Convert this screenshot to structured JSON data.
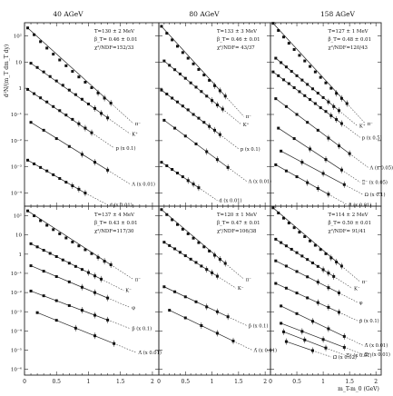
{
  "chart_data": {
    "type": "scatter",
    "energies": [
      "40 AGeV",
      "80 AGeV",
      "158 AGeV"
    ],
    "ylabel": "d²N/(m_T dm_T dy)",
    "xlabel": "m_T-m_0 (GeV)",
    "x_ticks": [
      "0",
      "0.5",
      "1",
      "1.5",
      "2"
    ],
    "x_range": [
      0,
      2.1
    ],
    "y_scale": "log",
    "y_range_exponents": [
      -6,
      3
    ],
    "y_tick_labels": {
      "top": [
        "10²",
        "10",
        "1",
        "10⁻¹",
        "10⁻²",
        "10⁻³",
        "10⁻⁴"
      ],
      "bottom": [
        "10²",
        "10",
        "1",
        "10⁻¹",
        "10⁻²",
        "10⁻³",
        "10⁻⁴",
        "10⁻⁵",
        "10⁻⁶"
      ]
    },
    "panels": [
      {
        "row": "top",
        "col": 0,
        "fit_T": "T=130 ± 2 MeV",
        "fit_beta": "β_T= 0.46 ± 0.01",
        "fit_chi": "χ²/NDF=152/33",
        "series": [
          {
            "name": "π⁻",
            "factor": 1,
            "x": [
              0.05,
              0.15,
              0.25,
              0.35,
              0.45,
              0.55,
              0.65,
              0.75,
              0.85,
              0.95,
              1.05,
              1.15,
              1.25,
              1.35
            ],
            "y": [
              200,
              110,
              60,
              34,
              20,
              12,
              7.2,
              4.4,
              2.7,
              1.7,
              1.05,
              0.66,
              0.42,
              0.27
            ]
          },
          {
            "name": "K⁺",
            "factor": 1,
            "x": [
              0.1,
              0.2,
              0.3,
              0.4,
              0.5,
              0.6,
              0.7,
              0.8,
              0.9,
              1.0,
              1.1,
              1.2,
              1.3
            ],
            "y": [
              9,
              6.2,
              4.2,
              2.8,
              1.9,
              1.3,
              0.85,
              0.57,
              0.38,
              0.25,
              0.17,
              0.11,
              0.074
            ]
          },
          {
            "name": "p (x 0.1)",
            "factor": 0.1,
            "x": [
              0.05,
              0.15,
              0.25,
              0.35,
              0.45,
              0.55,
              0.65,
              0.75,
              0.85,
              0.95,
              1.05
            ],
            "y": [
              0.9,
              0.62,
              0.43,
              0.3,
              0.2,
              0.14,
              0.095,
              0.065,
              0.044,
              0.03,
              0.02
            ]
          },
          {
            "name": "Λ (x 0.01)",
            "factor": 0.01,
            "x": [
              0.1,
              0.3,
              0.5,
              0.7,
              0.9,
              1.1,
              1.3
            ],
            "y": [
              0.05,
              0.025,
              0.012,
              0.006,
              0.003,
              0.0015,
              0.00075
            ]
          },
          {
            "name": "d (x 0.01)",
            "factor": 0.01,
            "x": [
              0.05,
              0.15,
              0.25,
              0.35,
              0.45,
              0.55,
              0.65,
              0.75,
              0.85,
              0.95
            ],
            "y": [
              0.0018,
              0.0013,
              0.00095,
              0.0007,
              0.0005,
              0.00036,
              0.00026,
              0.00019,
              0.00014,
              0.0001
            ]
          }
        ]
      },
      {
        "row": "top",
        "col": 1,
        "fit_T": "T=133 ± 3 MeV",
        "fit_beta": "β_T= 0.46 ± 0.01",
        "fit_chi": "χ²/NDF= 43/37",
        "series": [
          {
            "name": "π⁻",
            "factor": 1,
            "x": [
              0.05,
              0.15,
              0.25,
              0.35,
              0.45,
              0.55,
              0.65,
              0.75,
              0.85,
              0.95,
              1.05,
              1.15,
              1.25
            ],
            "y": [
              230,
              125,
              70,
              40,
              23,
              14,
              8.5,
              5.2,
              3.2,
              2.0,
              1.25,
              0.8,
              0.5
            ]
          },
          {
            "name": "K⁺",
            "factor": 1,
            "x": [
              0.1,
              0.2,
              0.3,
              0.4,
              0.5,
              0.6,
              0.7,
              0.8,
              0.9,
              1.0,
              1.1,
              1.2
            ],
            "y": [
              11,
              7.5,
              5.1,
              3.5,
              2.4,
              1.6,
              1.1,
              0.75,
              0.5,
              0.34,
              0.23,
              0.16
            ]
          },
          {
            "name": "p (x 0.1)",
            "factor": 0.1,
            "x": [
              0.05,
              0.15,
              0.25,
              0.35,
              0.45,
              0.55,
              0.65,
              0.75,
              0.85,
              0.95,
              1.05,
              1.15
            ],
            "y": [
              0.85,
              0.6,
              0.42,
              0.3,
              0.21,
              0.15,
              0.1,
              0.072,
              0.05,
              0.035,
              0.025,
              0.017
            ]
          },
          {
            "name": "Λ (x 0.01)",
            "factor": 0.01,
            "x": [
              0.1,
              0.3,
              0.5,
              0.7,
              0.9,
              1.1,
              1.3
            ],
            "y": [
              0.06,
              0.03,
              0.015,
              0.0075,
              0.0038,
              0.0019,
              0.00095
            ]
          },
          {
            "name": "d (x 0.01)",
            "factor": 0.01,
            "x": [
              0.05,
              0.15,
              0.25,
              0.35,
              0.45,
              0.55,
              0.65,
              0.75
            ],
            "y": [
              0.0015,
              0.0011,
              0.0008,
              0.00058,
              0.00042,
              0.0003,
              0.00022,
              0.00016
            ]
          }
        ]
      },
      {
        "row": "top",
        "col": 2,
        "fit_T": "T=127 ± 1 MeV",
        "fit_beta": "β_T= 0.48 ± 0.01",
        "fit_chi": "χ²/NDF=120/43",
        "series": [
          {
            "name": "π⁻",
            "factor": 1,
            "x": [
              0.05,
              0.15,
              0.25,
              0.35,
              0.45,
              0.55,
              0.65,
              0.75,
              0.85,
              0.95,
              1.05,
              1.15,
              1.25,
              1.35,
              1.45
            ],
            "y": [
              300,
              160,
              90,
              52,
              30,
              18,
              11,
              6.8,
              4.2,
              2.6,
              1.6,
              1.0,
              0.64,
              0.41,
              0.26
            ]
          },
          {
            "name": "K⁺",
            "factor": 1,
            "x": [
              0.1,
              0.2,
              0.3,
              0.4,
              0.5,
              0.6,
              0.7,
              0.8,
              0.9,
              1.0,
              1.1,
              1.2,
              1.3
            ],
            "y": [
              14,
              9.5,
              6.5,
              4.4,
              3.0,
              2.05,
              1.4,
              0.95,
              0.65,
              0.44,
              0.3,
              0.2,
              0.14
            ]
          },
          {
            "name": "p (x 0.5)",
            "factor": 0.5,
            "x": [
              0.05,
              0.15,
              0.25,
              0.35,
              0.45,
              0.55,
              0.65,
              0.75,
              0.85,
              0.95,
              1.05,
              1.15,
              1.25,
              1.35
            ],
            "y": [
              4.2,
              3.0,
              2.1,
              1.5,
              1.05,
              0.74,
              0.52,
              0.37,
              0.26,
              0.18,
              0.13,
              0.09,
              0.064,
              0.045
            ]
          },
          {
            "name": "Λ (x 0.05)",
            "factor": 0.05,
            "x": [
              0.1,
              0.3,
              0.5,
              0.7,
              0.9,
              1.1,
              1.3,
              1.5
            ],
            "y": [
              0.4,
              0.2,
              0.1,
              0.05,
              0.025,
              0.0125,
              0.0063,
              0.0032
            ]
          },
          {
            "name": "Ξ⁻ (x 0.05)",
            "factor": 0.05,
            "x": [
              0.15,
              0.45,
              0.75,
              1.05,
              1.35
            ],
            "y": [
              0.03,
              0.012,
              0.0048,
              0.0019,
              0.00076
            ]
          },
          {
            "name": "Ω (x 0.1)",
            "factor": 0.1,
            "x": [
              0.2,
              0.6,
              1.0,
              1.4
            ],
            "y": [
              0.004,
              0.0015,
              0.00056,
              0.00021
            ]
          },
          {
            "name": "d (x 0.01)",
            "factor": 0.01,
            "x": [
              0.1,
              0.3,
              0.5,
              0.7,
              0.9,
              1.1
            ],
            "y": [
              0.0012,
              0.0007,
              0.00042,
              0.00025,
              0.00015,
              9e-05
            ]
          }
        ]
      },
      {
        "row": "bottom",
        "col": 0,
        "fit_T": "T=137 ± 4 MeV",
        "fit_beta": "β_T= 0.43 ± 0.01",
        "fit_chi": "χ²/NDF=117/30",
        "series": [
          {
            "name": "π⁻",
            "factor": 1,
            "x": [
              0.05,
              0.15,
              0.25,
              0.35,
              0.45,
              0.55,
              0.65,
              0.75,
              0.85,
              0.95,
              1.05,
              1.15,
              1.25,
              1.35
            ],
            "y": [
              180,
              100,
              56,
              32,
              19,
              11.5,
              7.0,
              4.3,
              2.7,
              1.7,
              1.07,
              0.68,
              0.43,
              0.28
            ]
          },
          {
            "name": "K⁻",
            "factor": 1,
            "x": [
              0.1,
              0.2,
              0.3,
              0.4,
              0.5,
              0.6,
              0.7,
              0.8,
              0.9,
              1.0,
              1.1,
              1.2
            ],
            "y": [
              3.5,
              2.4,
              1.6,
              1.1,
              0.75,
              0.5,
              0.34,
              0.23,
              0.16,
              0.11,
              0.074,
              0.05
            ]
          },
          {
            "name": "φ",
            "factor": 1,
            "x": [
              0.1,
              0.3,
              0.5,
              0.7,
              0.9,
              1.1,
              1.3
            ],
            "y": [
              0.25,
              0.13,
              0.068,
              0.036,
              0.019,
              0.01,
              0.0052
            ]
          },
          {
            "name": "p̄ (x 0.1)",
            "factor": 0.1,
            "x": [
              0.1,
              0.3,
              0.5,
              0.7,
              0.9,
              1.1,
              1.3
            ],
            "y": [
              0.012,
              0.0068,
              0.0038,
              0.0021,
              0.0012,
              0.00066,
              0.00037
            ]
          },
          {
            "name": "Λ̄ (x 0.01)",
            "factor": 0.01,
            "x": [
              0.2,
              0.5,
              0.8,
              1.1,
              1.4
            ],
            "y": [
              0.0009,
              0.00036,
              0.00014,
              5.6e-05,
              2.2e-05
            ]
          }
        ]
      },
      {
        "row": "bottom",
        "col": 1,
        "fit_T": "T=120 ± 1 MeV",
        "fit_beta": "β_T= 0.47 ± 0.01",
        "fit_chi": "χ²/NDF=106/38",
        "series": [
          {
            "name": "π⁻",
            "factor": 1,
            "x": [
              0.05,
              0.15,
              0.25,
              0.35,
              0.45,
              0.55,
              0.65,
              0.75,
              0.85,
              0.95,
              1.05,
              1.15,
              1.25
            ],
            "y": [
              210,
              115,
              62,
              35,
              20,
              11.5,
              6.8,
              4.0,
              2.4,
              1.45,
              0.88,
              0.54,
              0.33
            ]
          },
          {
            "name": "K⁻",
            "factor": 1,
            "x": [
              0.1,
              0.2,
              0.3,
              0.4,
              0.5,
              0.6,
              0.7,
              0.8,
              0.9,
              1.0,
              1.1
            ],
            "y": [
              4.2,
              2.8,
              1.9,
              1.25,
              0.83,
              0.55,
              0.37,
              0.24,
              0.16,
              0.107,
              0.071
            ]
          },
          {
            "name": "p̄ (x 0.1)",
            "factor": 0.1,
            "x": [
              0.1,
              0.3,
              0.5,
              0.7,
              0.9,
              1.1,
              1.3
            ],
            "y": [
              0.02,
              0.011,
              0.006,
              0.0033,
              0.0018,
              0.001,
              0.00055
            ]
          },
          {
            "name": "Λ̄ (x 0.01)",
            "factor": 0.01,
            "x": [
              0.2,
              0.5,
              0.8,
              1.1,
              1.4
            ],
            "y": [
              0.0012,
              0.00048,
              0.00019,
              7.6e-05,
              3e-05
            ]
          }
        ]
      },
      {
        "row": "bottom",
        "col": 2,
        "fit_T": "T=114 ± 2 MeV",
        "fit_beta": "β_T= 0.50 ± 0.01",
        "fit_chi": "χ²/NDF= 91/41",
        "series": [
          {
            "name": "π⁻",
            "factor": 1,
            "x": [
              0.05,
              0.15,
              0.25,
              0.35,
              0.45,
              0.55,
              0.65,
              0.75,
              0.85,
              0.95,
              1.05,
              1.15,
              1.25,
              1.35
            ],
            "y": [
              260,
              140,
              75,
              42,
              24,
              14,
              8.2,
              4.9,
              2.9,
              1.75,
              1.05,
              0.64,
              0.39,
              0.24
            ]
          },
          {
            "name": "K⁻",
            "factor": 1,
            "x": [
              0.1,
              0.2,
              0.3,
              0.4,
              0.5,
              0.6,
              0.7,
              0.8,
              0.9,
              1.0,
              1.1,
              1.2
            ],
            "y": [
              6,
              4.0,
              2.7,
              1.8,
              1.2,
              0.8,
              0.53,
              0.35,
              0.23,
              0.155,
              0.103,
              0.069
            ]
          },
          {
            "name": "φ",
            "factor": 1,
            "x": [
              0.1,
              0.3,
              0.5,
              0.7,
              0.9,
              1.1,
              1.3
            ],
            "y": [
              0.45,
              0.24,
              0.125,
              0.066,
              0.035,
              0.018,
              0.0096
            ]
          },
          {
            "name": "p̄ (x 0.1)",
            "factor": 0.1,
            "x": [
              0.1,
              0.3,
              0.5,
              0.7,
              0.9,
              1.1,
              1.3
            ],
            "y": [
              0.03,
              0.017,
              0.0095,
              0.0053,
              0.003,
              0.0017,
              0.00094
            ]
          },
          {
            "name": "Λ̄ (x 0.01)",
            "factor": 0.01,
            "x": [
              0.2,
              0.5,
              0.8,
              1.1,
              1.4
            ],
            "y": [
              0.002,
              0.0008,
              0.00032,
              0.00013,
              5.2e-05
            ]
          },
          {
            "name": "Ξ̄⁺ (x 0.01)",
            "factor": 0.01,
            "x": [
              0.2,
              0.6,
              1.0,
              1.4
            ],
            "y": [
              0.00025,
              9.5e-05,
              3.6e-05,
              1.4e-05
            ]
          },
          {
            "name": "Ξ̄⁺ (x 0.01)",
            "factor": 0.01,
            "x": [
              0.25,
              0.65,
              1.05
            ],
            "y": [
              9e-05,
              3.4e-05,
              1.3e-05
            ]
          },
          {
            "name": "Ω̄ (x 0.02)",
            "factor": 0.02,
            "x": [
              0.3,
              0.8
            ],
            "y": [
              2.8e-05,
              9.5e-06
            ]
          }
        ]
      }
    ]
  }
}
